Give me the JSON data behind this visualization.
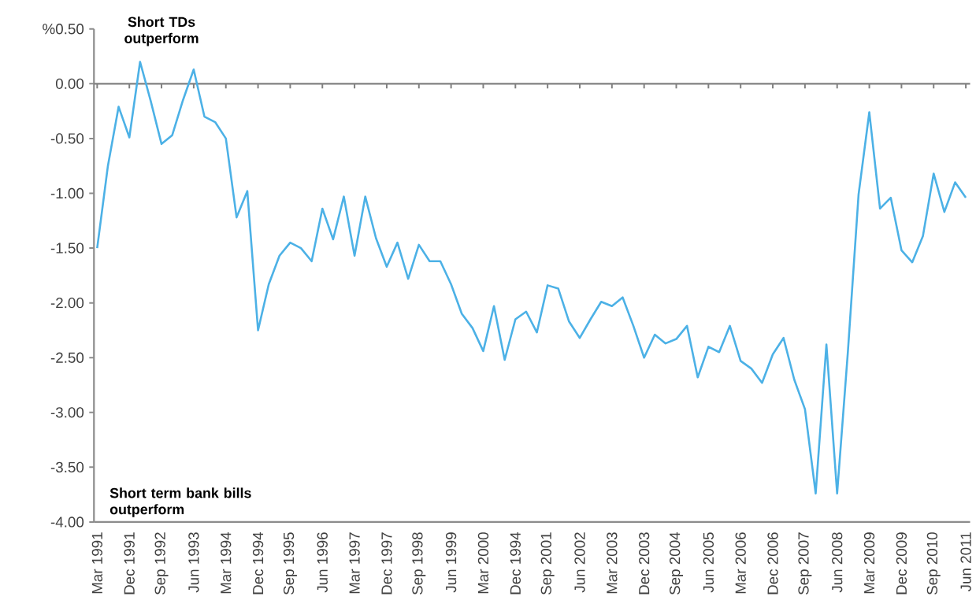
{
  "chart_data": {
    "type": "line",
    "color": "#4cb1e6",
    "line_style": "solid",
    "marker": "none",
    "grid": false,
    "categories": [
      "Mar 1991",
      null,
      null,
      "Dec 1991",
      null,
      null,
      "Sep 1992",
      null,
      null,
      "Jun 1993",
      null,
      null,
      "Mar 1994",
      null,
      null,
      "Dec 1994",
      null,
      null,
      "Sep 1995",
      null,
      null,
      "Jun 1996",
      null,
      null,
      "Mar 1997",
      null,
      null,
      "Dec 1997",
      null,
      null,
      "Sep 1998",
      null,
      null,
      "Jun 1999",
      null,
      null,
      "Mar 2000",
      null,
      null,
      "Dec 1994",
      null,
      null,
      "Sep 2001",
      null,
      null,
      "Jun 2002",
      null,
      null,
      "Mar 2003",
      null,
      null,
      "Dec 2003",
      null,
      null,
      "Sep 2004",
      null,
      null,
      "Jun 2005",
      null,
      null,
      "Mar 2006",
      null,
      null,
      "Dec 2006",
      null,
      null,
      "Sep 2007",
      null,
      null,
      "Jun 2008",
      null,
      null,
      "Mar 2009",
      null,
      null,
      "Dec 2009",
      null,
      null,
      "Sep 2010",
      null,
      null,
      "Jun 2011"
    ],
    "values": [
      -1.5,
      -0.75,
      -0.21,
      -0.49,
      0.2,
      -0.16,
      -0.55,
      -0.47,
      -0.15,
      0.13,
      -0.3,
      -0.35,
      -0.5,
      -1.22,
      -0.98,
      -2.25,
      -1.83,
      -1.57,
      -1.45,
      -1.5,
      -1.62,
      -1.14,
      -1.42,
      -1.03,
      -1.57,
      -1.03,
      -1.41,
      -1.67,
      -1.45,
      -1.78,
      -1.47,
      -1.62,
      -1.62,
      -1.83,
      -2.1,
      -2.23,
      -2.44,
      -2.03,
      -2.52,
      -2.15,
      -2.08,
      -2.27,
      -1.84,
      -1.87,
      -2.17,
      -2.32,
      -2.15,
      -1.99,
      -2.03,
      -1.95,
      -2.21,
      -2.5,
      -2.29,
      -2.37,
      -2.33,
      -2.21,
      -2.68,
      -2.4,
      -2.45,
      -2.21,
      -2.53,
      -2.6,
      -2.73,
      -2.47,
      -2.32,
      -2.7,
      -2.97,
      -3.74,
      -2.38,
      -3.74,
      -2.45,
      -1.01,
      -0.26,
      -1.14,
      -1.04,
      -1.52,
      -1.63,
      -1.39,
      -0.82,
      -1.17,
      -0.9,
      -1.04
    ],
    "ylim": [
      -4,
      0.5
    ],
    "yticks": [
      {
        "value": 0.5,
        "label": "%0.50"
      },
      {
        "value": 0,
        "label": "0.00"
      },
      {
        "value": -0.5,
        "label": "-0.50"
      },
      {
        "value": -1,
        "label": "-1.00"
      },
      {
        "value": -1.5,
        "label": "-1.50"
      },
      {
        "value": -2,
        "label": "-2.00"
      },
      {
        "value": -2.5,
        "label": "-2.50"
      },
      {
        "value": -3,
        "label": "-3.00"
      },
      {
        "value": -3.5,
        "label": "-3.50"
      },
      {
        "value": -4,
        "label": "-4.00"
      }
    ],
    "ref_lines": [
      {
        "axis": "y",
        "value": 0,
        "color": "#808080"
      }
    ],
    "annotations": [
      "Short TDs outperform",
      "Short term bank bills outperform"
    ]
  }
}
